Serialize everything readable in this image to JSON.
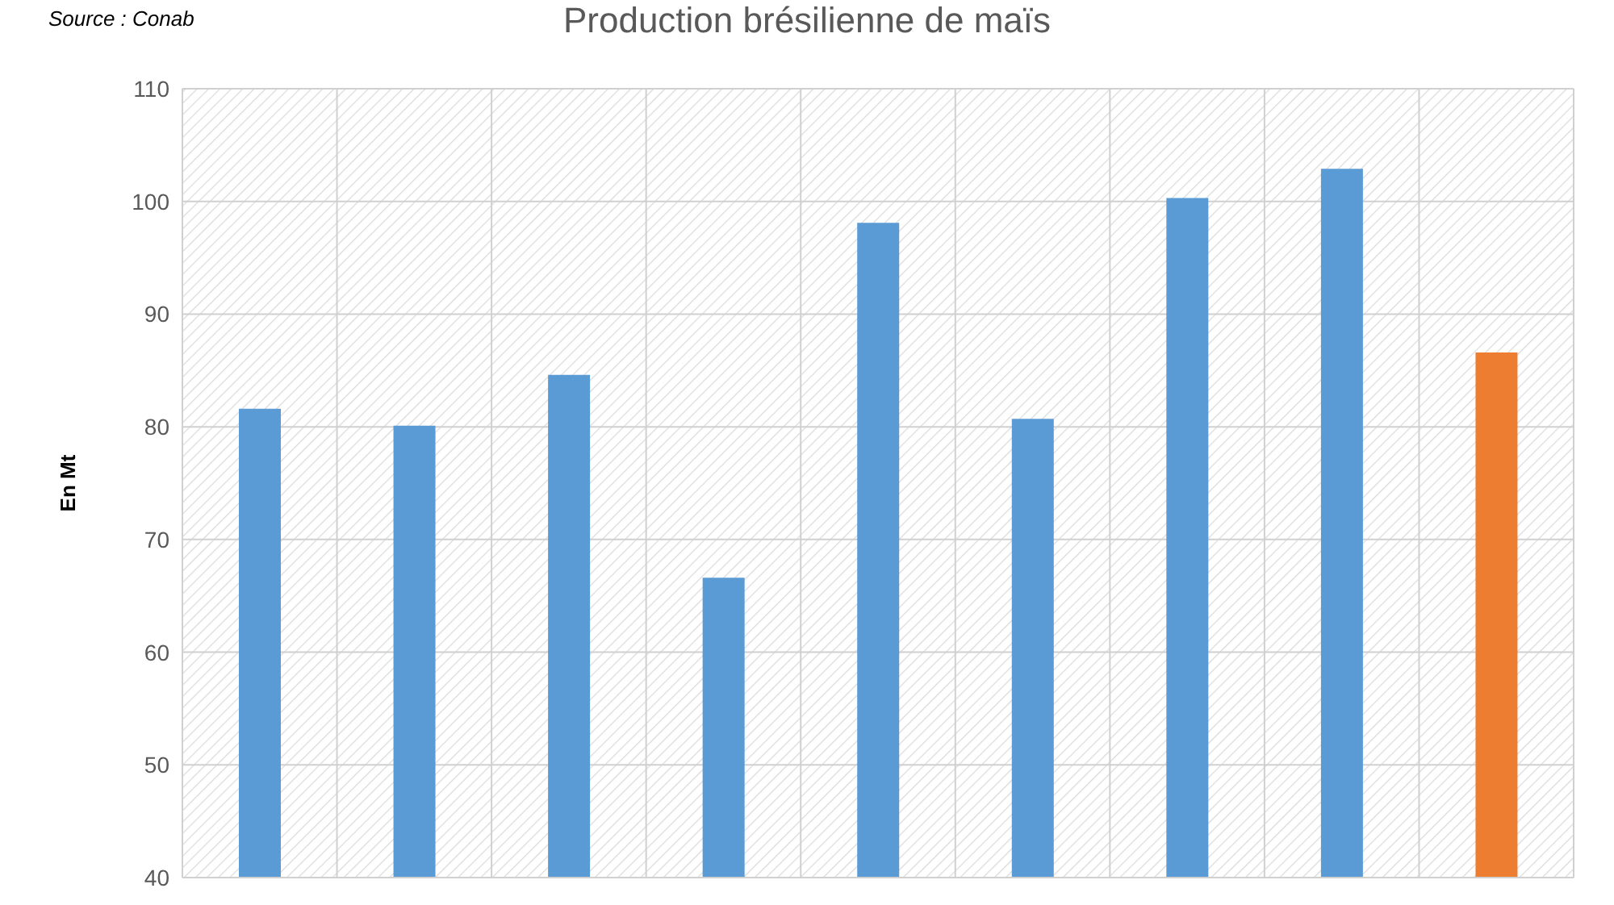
{
  "chart_data": {
    "type": "bar",
    "title": "Production brésilienne de maïs",
    "ylabel": "En Mt",
    "annotations": [
      "Source : Conab"
    ],
    "categories": [
      null,
      null,
      null,
      null,
      null,
      null,
      null,
      null,
      null
    ],
    "values": [
      81.6,
      80.1,
      84.6,
      66.6,
      98.1,
      80.7,
      100.3,
      102.9,
      86.6
    ],
    "colors": [
      "#5b9bd5",
      "#5b9bd5",
      "#5b9bd5",
      "#5b9bd5",
      "#5b9bd5",
      "#5b9bd5",
      "#5b9bd5",
      "#5b9bd5",
      "#ed7d31"
    ],
    "ylim": [
      40,
      110
    ],
    "yticks": [
      40,
      50,
      60,
      70,
      80,
      90,
      100,
      110
    ],
    "grid": true,
    "tick_labels": "y"
  }
}
